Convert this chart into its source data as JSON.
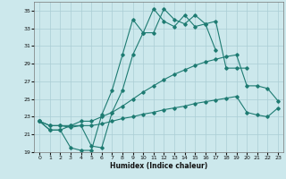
{
  "xlabel": "Humidex (Indice chaleur)",
  "background_color": "#cce8ec",
  "grid_color": "#aacdd4",
  "line_color": "#1e7b72",
  "xlim": [
    -0.5,
    23.5
  ],
  "ylim": [
    19,
    36
  ],
  "xticks": [
    0,
    1,
    2,
    3,
    4,
    5,
    6,
    7,
    8,
    9,
    10,
    11,
    12,
    13,
    14,
    15,
    16,
    17,
    18,
    19,
    20,
    21,
    22,
    23
  ],
  "yticks": [
    19,
    21,
    23,
    25,
    27,
    29,
    31,
    33,
    35
  ],
  "s1_x": [
    0,
    1,
    2,
    3,
    4,
    5,
    6,
    7,
    8,
    9,
    10,
    11,
    12,
    13,
    14,
    15,
    16,
    17
  ],
  "s1_y": [
    22.5,
    21.5,
    21.5,
    19.5,
    19.2,
    19.2,
    23.2,
    26.0,
    30.0,
    34.0,
    32.5,
    35.2,
    33.8,
    33.2,
    34.5,
    33.2,
    33.5,
    30.5
  ],
  "s2_x": [
    0,
    1,
    2,
    3,
    4,
    5,
    6,
    7,
    8,
    9,
    10,
    11,
    12,
    13,
    14,
    15,
    16,
    17,
    18,
    19,
    20
  ],
  "s2_y": [
    22.5,
    21.5,
    21.5,
    22.0,
    22.0,
    19.7,
    19.5,
    23.5,
    26.0,
    30.0,
    32.5,
    32.5,
    35.2,
    34.0,
    33.5,
    34.5,
    33.5,
    33.8,
    28.5,
    28.5,
    28.5
  ],
  "s3_x": [
    0,
    1,
    2,
    3,
    4,
    5,
    6,
    7,
    8,
    9,
    10,
    11,
    12,
    13,
    14,
    15,
    16,
    17,
    18,
    19,
    20,
    21,
    22,
    23
  ],
  "s3_y": [
    22.5,
    22.0,
    22.0,
    22.0,
    22.5,
    22.5,
    23.0,
    23.5,
    24.2,
    25.0,
    25.8,
    26.5,
    27.2,
    27.8,
    28.3,
    28.8,
    29.2,
    29.5,
    29.8,
    30.0,
    26.5,
    26.5,
    26.2,
    24.8
  ],
  "s4_x": [
    0,
    1,
    2,
    3,
    4,
    5,
    6,
    7,
    8,
    9,
    10,
    11,
    12,
    13,
    14,
    15,
    16,
    17,
    18,
    19,
    20,
    21,
    22,
    23
  ],
  "s4_y": [
    22.5,
    22.0,
    22.0,
    21.8,
    22.0,
    22.0,
    22.2,
    22.5,
    22.8,
    23.0,
    23.3,
    23.5,
    23.8,
    24.0,
    24.2,
    24.5,
    24.7,
    24.9,
    25.1,
    25.3,
    23.5,
    23.2,
    23.0,
    24.0
  ]
}
